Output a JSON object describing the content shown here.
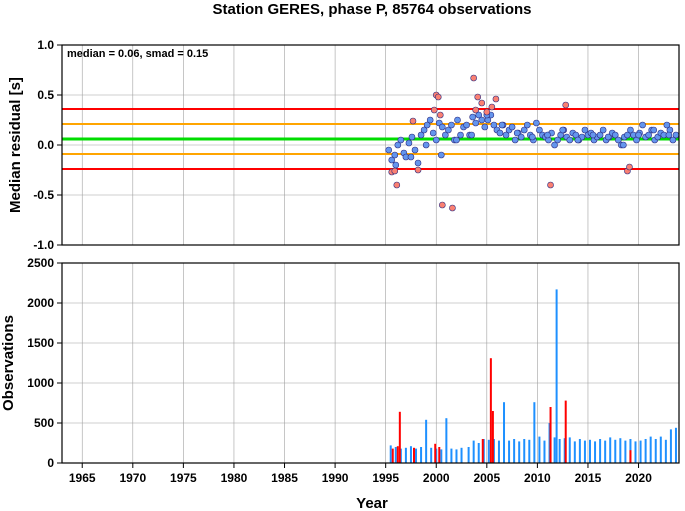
{
  "chart_data": [
    {
      "type": "scatter",
      "title": "Station GERES, phase P, 85764 observations",
      "ylabel": "Median residual [s]",
      "annotation": "median = 0.06, smad = 0.15",
      "xlim": [
        1963,
        2024
      ],
      "ylim": [
        -1.0,
        1.0
      ],
      "yticks": [
        "1.0",
        "0.5",
        "0.0",
        "-0.5",
        "-1.0"
      ],
      "grid": true,
      "reference_lines": [
        {
          "name": "median",
          "y": 0.06,
          "color": "#00dd00"
        },
        {
          "name": "median + smad",
          "y": 0.21,
          "color": "#ffa500"
        },
        {
          "name": "median - smad",
          "y": -0.09,
          "color": "#ffa500"
        },
        {
          "name": "upper limit",
          "y": 0.36,
          "color": "#ff0000"
        },
        {
          "name": "lower limit",
          "y": -0.24,
          "color": "#ff0000"
        }
      ],
      "series": [
        {
          "color": "#6495ed",
          "x": [
            1995.3,
            1995.6,
            1995.9,
            1996.2,
            1996.5,
            1996.8,
            1997.0,
            1997.3,
            1997.6,
            1997.9,
            1998.2,
            1998.5,
            1998.8,
            1999.1,
            1999.4,
            1999.7,
            2000.0,
            2000.3,
            2000.6,
            2000.9,
            2001.2,
            2001.5,
            2001.8,
            2002.1,
            2002.4,
            2002.7,
            2003.0,
            2003.3,
            2003.6,
            2003.9,
            2004.2,
            2004.5,
            2004.8,
            2005.1,
            2005.4,
            2005.7,
            2006.0,
            2006.3,
            2006.6,
            2006.9,
            2007.2,
            2007.5,
            2007.8,
            2008.1,
            2008.4,
            2008.7,
            2009.0,
            2009.3,
            2009.6,
            2009.9,
            2010.2,
            2010.5,
            2010.8,
            2011.1,
            2011.4,
            2011.7,
            2012.0,
            2012.3,
            2012.6,
            2012.9,
            2013.2,
            2013.5,
            2013.8,
            2014.1,
            2014.4,
            2014.7,
            2015.0,
            2015.3,
            2015.6,
            2015.9,
            2016.2,
            2016.5,
            2016.8,
            2017.1,
            2017.4,
            2017.7,
            2018.0,
            2018.3,
            2018.6,
            2018.9,
            2019.2,
            2019.5,
            2019.8,
            2020.1,
            2020.4,
            2020.7,
            2021.0,
            2021.3,
            2021.6,
            2021.9,
            2022.2,
            2022.5,
            2022.8,
            2023.1,
            2023.4,
            2023.7,
            1996.0,
            1997.5,
            1999.0,
            2000.5,
            2002.0,
            2003.5,
            2005.0,
            2006.5,
            2008.0,
            2009.5,
            2011.0,
            2012.5,
            2014.0,
            2015.5,
            2017.0,
            2018.5,
            2020.0,
            2021.5,
            2023.0
          ],
          "y": [
            -0.05,
            -0.15,
            -0.1,
            0.0,
            0.05,
            -0.08,
            -0.12,
            0.02,
            0.08,
            -0.05,
            -0.18,
            0.1,
            0.15,
            0.2,
            0.25,
            0.12,
            0.05,
            0.22,
            0.18,
            0.1,
            0.15,
            0.2,
            0.05,
            0.25,
            0.1,
            0.18,
            0.2,
            0.1,
            0.28,
            0.22,
            0.3,
            0.25,
            0.18,
            0.25,
            0.3,
            0.2,
            0.15,
            0.12,
            0.2,
            0.1,
            0.15,
            0.18,
            0.05,
            0.12,
            0.08,
            0.15,
            0.2,
            0.1,
            0.05,
            0.22,
            0.15,
            0.1,
            0.08,
            0.05,
            0.12,
            0.0,
            0.05,
            0.1,
            0.15,
            0.08,
            0.05,
            0.12,
            0.1,
            0.05,
            0.08,
            0.15,
            0.1,
            0.12,
            0.05,
            0.08,
            0.1,
            0.15,
            0.05,
            0.08,
            0.12,
            0.1,
            0.05,
            0.0,
            0.08,
            0.1,
            0.15,
            0.1,
            0.05,
            0.12,
            0.2,
            0.08,
            0.1,
            0.15,
            0.05,
            0.08,
            0.12,
            0.1,
            0.2,
            0.15,
            0.05,
            0.1,
            -0.2,
            -0.12,
            0.0,
            -0.1,
            0.05,
            0.1,
            0.3,
            0.2,
            0.12,
            0.08,
            0.1,
            0.15,
            0.05,
            0.1,
            0.08,
            0.0,
            0.1,
            0.15,
            0.1
          ]
        },
        {
          "color": "#fa8072",
          "x": [
            1995.6,
            1995.9,
            1996.1,
            1999.8,
            2000.0,
            2000.2,
            2000.4,
            2000.6,
            2001.6,
            2003.7,
            2003.9,
            2004.1,
            2004.5,
            2005.0,
            2005.5,
            2005.9,
            2011.3,
            2012.8,
            2018.9,
            2019.1,
            1997.7,
            1998.2
          ],
          "y": [
            -0.27,
            -0.26,
            -0.4,
            0.35,
            0.5,
            0.48,
            0.3,
            -0.6,
            -0.63,
            0.67,
            0.35,
            0.48,
            0.42,
            0.33,
            0.38,
            0.46,
            -0.4,
            0.4,
            -0.26,
            -0.22,
            0.24,
            -0.25
          ]
        }
      ]
    },
    {
      "type": "bar",
      "ylabel": "Observations",
      "xlabel": "Year",
      "xlim": [
        1963,
        2024
      ],
      "ylim": [
        0,
        2500
      ],
      "yticks": [
        "2500",
        "2000",
        "1500",
        "1000",
        "500",
        "0"
      ],
      "xticks": [
        "1965",
        "1970",
        "1975",
        "1980",
        "1985",
        "1990",
        "1995",
        "2000",
        "2005",
        "2010",
        "2015",
        "2020"
      ],
      "grid": true,
      "series": [
        {
          "color": "#1e90ff",
          "x": [
            1995.5,
            1996.0,
            1996.5,
            1997.0,
            1997.5,
            1998.0,
            1998.5,
            1999.0,
            1999.5,
            2000.0,
            2000.5,
            2001.0,
            2001.5,
            2002.0,
            2002.5,
            2003.2,
            2003.7,
            2004.2,
            2004.7,
            2005.2,
            2005.7,
            2006.2,
            2006.7,
            2007.2,
            2007.7,
            2008.2,
            2008.7,
            2009.2,
            2009.7,
            2010.2,
            2010.7,
            2011.2,
            2011.7,
            2011.9,
            2012.2,
            2012.7,
            2013.2,
            2013.7,
            2014.2,
            2014.7,
            2015.2,
            2015.7,
            2016.2,
            2016.7,
            2017.2,
            2017.7,
            2018.2,
            2018.7,
            2019.2,
            2019.7,
            2020.2,
            2020.7,
            2021.2,
            2021.7,
            2022.2,
            2022.7,
            2023.2,
            2023.7
          ],
          "values": [
            220,
            200,
            180,
            190,
            210,
            180,
            200,
            540,
            190,
            180,
            170,
            560,
            180,
            170,
            190,
            200,
            280,
            250,
            300,
            290,
            300,
            280,
            760,
            280,
            300,
            270,
            300,
            290,
            760,
            330,
            280,
            500,
            320,
            2170,
            300,
            310,
            320,
            270,
            300,
            280,
            290,
            270,
            300,
            280,
            320,
            290,
            310,
            280,
            300,
            270,
            280,
            300,
            330,
            300,
            330,
            290,
            420,
            440
          ]
        },
        {
          "color": "#ff0000",
          "x": [
            1995.7,
            1996.2,
            1996.4,
            1997.8,
            1999.9,
            2000.3,
            2004.6,
            2005.4,
            2005.6,
            2011.3,
            2012.8,
            2019.2
          ],
          "values": [
            180,
            210,
            640,
            190,
            240,
            200,
            300,
            1310,
            650,
            700,
            780,
            160
          ]
        }
      ]
    }
  ]
}
